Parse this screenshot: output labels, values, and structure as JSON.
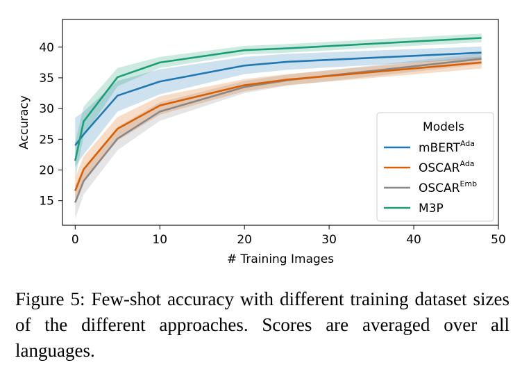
{
  "chart_data": {
    "type": "line",
    "xlabel": "# Training Images",
    "ylabel": "Accuracy",
    "xlim": [
      -1.5,
      50
    ],
    "ylim": [
      11,
      44.5
    ],
    "xticks": [
      0,
      10,
      20,
      30,
      40,
      50
    ],
    "yticks": [
      15,
      20,
      25,
      30,
      35,
      40
    ],
    "grid": false,
    "legend": {
      "title": "Models",
      "placement": "center-right"
    },
    "x": [
      0,
      1,
      5,
      10,
      20,
      25,
      48
    ],
    "series": [
      {
        "name": "mBERT",
        "name_sup": "Ada",
        "color": "#1f77b4",
        "values": [
          24.0,
          25.8,
          32.1,
          34.4,
          37.0,
          37.6,
          39.1
        ],
        "lower": [
          20.5,
          22.5,
          29.5,
          32.3,
          35.6,
          36.3,
          38.1
        ],
        "upper": [
          28.5,
          29.5,
          34.5,
          36.4,
          38.4,
          38.9,
          40.1
        ]
      },
      {
        "name": "OSCAR",
        "name_sup": "Ada",
        "color": "#d95f02",
        "values": [
          16.6,
          20.1,
          26.7,
          30.5,
          33.8,
          34.7,
          37.5
        ],
        "lower": [
          14.5,
          18.1,
          24.8,
          29.0,
          32.8,
          33.8,
          36.5
        ],
        "upper": [
          18.8,
          22.2,
          28.6,
          32.0,
          34.8,
          35.6,
          38.5
        ]
      },
      {
        "name": "OSCAR",
        "name_sup": "Emb",
        "color": "#888888",
        "values": [
          14.7,
          18.2,
          25.1,
          29.5,
          33.5,
          34.6,
          38.1
        ],
        "lower": [
          12.0,
          16.0,
          23.2,
          28.0,
          32.5,
          33.7,
          37.2
        ],
        "upper": [
          17.5,
          20.4,
          27.0,
          31.0,
          34.5,
          35.5,
          39.0
        ]
      },
      {
        "name": "M3P",
        "name_sup": "",
        "color": "#1b9e77",
        "values": [
          21.5,
          27.9,
          35.1,
          37.5,
          39.5,
          39.8,
          41.5
        ],
        "lower": [
          18.5,
          25.5,
          33.6,
          36.6,
          38.8,
          39.1,
          40.8
        ],
        "upper": [
          24.5,
          30.3,
          36.6,
          38.4,
          40.2,
          40.5,
          42.2
        ]
      }
    ]
  },
  "caption": "Figure 5:  Few-shot accuracy with different training dataset sizes of the different approaches.  Scores are averaged over all languages."
}
